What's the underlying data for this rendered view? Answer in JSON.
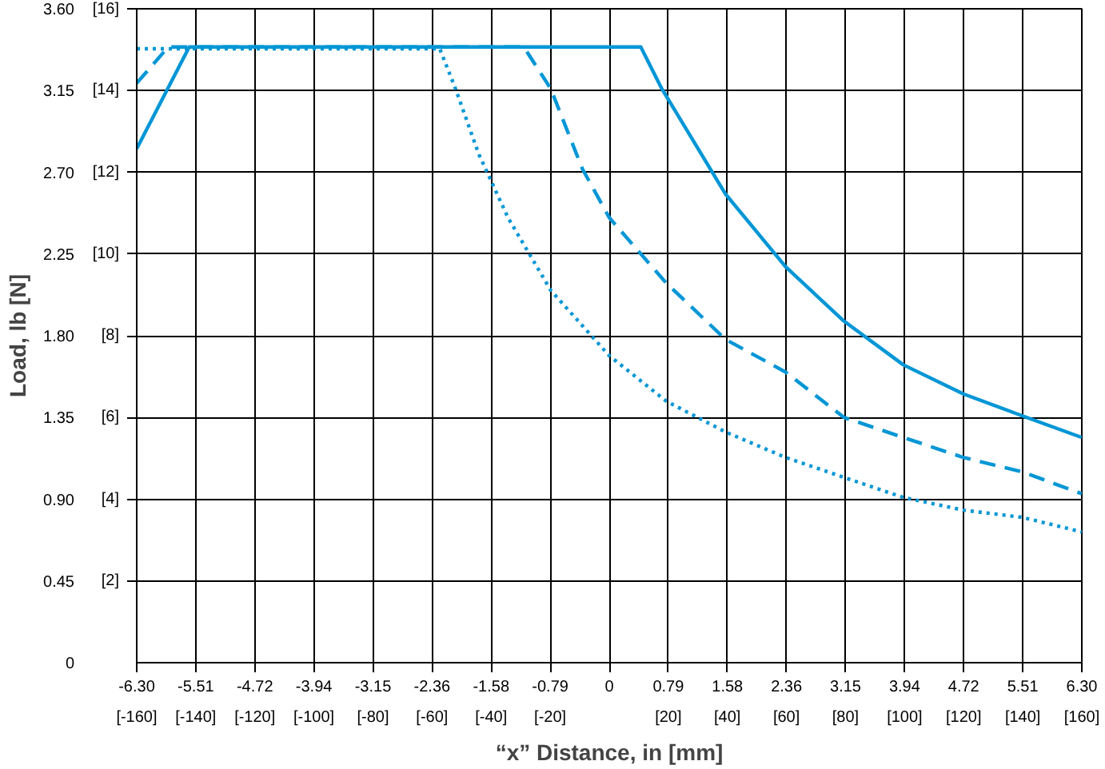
{
  "chart_data": {
    "type": "line",
    "xlabel": "“x” Distance, in [mm]",
    "ylabel": "Load, lb [N]",
    "xlim": [
      -6.3,
      6.3
    ],
    "ylim": [
      0,
      3.6
    ],
    "xticks": [
      {
        "value": -6.3,
        "label": "-6.30"
      },
      {
        "value": -5.5125,
        "label": "-5.51"
      },
      {
        "value": -4.725,
        "label": "-4.72"
      },
      {
        "value": -3.9375,
        "label": "-3.94"
      },
      {
        "value": -3.15,
        "label": "-3.15"
      },
      {
        "value": -2.3625,
        "label": "-2.36"
      },
      {
        "value": -1.575,
        "label": "-1.58"
      },
      {
        "value": -0.7875,
        "label": "-0.79"
      },
      0,
      {
        "value": 0.7875,
        "label": "0.79"
      },
      {
        "value": 1.575,
        "label": "1.58"
      },
      {
        "value": 2.3625,
        "label": "2.36"
      },
      {
        "value": 3.15,
        "label": "3.15"
      },
      {
        "value": 3.9375,
        "label": "3.94"
      },
      {
        "value": 4.725,
        "label": "4.72"
      },
      {
        "value": 5.5125,
        "label": "5.51"
      },
      {
        "value": 6.3,
        "label": "6.30"
      }
    ],
    "yticks": [
      0,
      {
        "value": 0.45,
        "label": "0.45"
      },
      {
        "value": 0.9,
        "label": "0.90"
      },
      {
        "value": 1.35,
        "label": "1.35"
      },
      {
        "value": 1.8,
        "label": "1.80"
      },
      {
        "value": 2.25,
        "label": "2.25"
      },
      {
        "value": 2.7,
        "label": "2.70"
      },
      {
        "value": 3.15,
        "label": "3.15"
      },
      {
        "value": 3.6,
        "label": "3.60"
      }
    ],
    "x2lim": [
      -160,
      160
    ],
    "x2ticks": [
      {
        "value": -160,
        "label": "[-160]"
      },
      {
        "value": -140,
        "label": "[-140]"
      },
      {
        "value": -120,
        "label": "[-120]"
      },
      {
        "value": -100,
        "label": "[-100]"
      },
      {
        "value": -80,
        "label": "[-80]"
      },
      {
        "value": -60,
        "label": "[-60]"
      },
      {
        "value": -40,
        "label": "[-40]"
      },
      {
        "value": -20,
        "label": "[-20]"
      },
      {
        "value": 20,
        "label": "[20]"
      },
      {
        "value": 40,
        "label": "[40]"
      },
      {
        "value": 60,
        "label": "[60]"
      },
      {
        "value": 80,
        "label": "[80]"
      },
      {
        "value": 100,
        "label": "[100]"
      },
      {
        "value": 120,
        "label": "[120]"
      },
      {
        "value": 140,
        "label": "[140]"
      },
      {
        "value": 160,
        "label": "[160]"
      }
    ],
    "y2lim": [
      0,
      16
    ],
    "y2ticks": [
      {
        "value": 2,
        "label": "[2]"
      },
      {
        "value": 4,
        "label": "[4]"
      },
      {
        "value": 6,
        "label": "[6]"
      },
      {
        "value": 8,
        "label": "[8]"
      },
      {
        "value": 10,
        "label": "[10]"
      },
      {
        "value": 12,
        "label": "[12]"
      },
      {
        "value": 14,
        "label": "[14]"
      },
      {
        "value": 16,
        "label": "[16]"
      }
    ],
    "grid": true,
    "marker": "none",
    "series": [
      {
        "color": "#0096d6",
        "line_style": "solid",
        "x": [
          -6.3,
          -5.6,
          0.42,
          0.7,
          1.55,
          2.35,
          3.13,
          3.92,
          4.72,
          5.5,
          6.3
        ],
        "values": [
          2.83,
          3.39,
          3.39,
          3.16,
          2.58,
          2.18,
          1.88,
          1.64,
          1.48,
          1.36,
          1.24
        ]
      },
      {
        "color": "#0096d6",
        "line_style": "dashed",
        "x": [
          -6.3,
          -5.88,
          -1.14,
          -0.78,
          -0.36,
          0,
          0.76,
          1.55,
          2.35,
          3.13,
          3.92,
          4.72,
          5.51,
          6.3
        ],
        "values": [
          3.19,
          3.39,
          3.39,
          3.16,
          2.72,
          2.45,
          2.09,
          1.78,
          1.6,
          1.35,
          1.24,
          1.13,
          1.05,
          0.93
        ]
      },
      {
        "color": "#0096d6",
        "line_style": "dotted",
        "x": [
          -6.3,
          -2.26,
          -2.05,
          -1.74,
          -1.35,
          -0.78,
          0,
          0.76,
          1.55,
          2.35,
          3.13,
          3.92,
          4.72,
          5.51,
          6.3
        ],
        "values": [
          3.38,
          3.38,
          3.16,
          2.8,
          2.45,
          2.05,
          1.69,
          1.44,
          1.27,
          1.13,
          1.02,
          0.91,
          0.84,
          0.8,
          0.72
        ]
      }
    ]
  }
}
